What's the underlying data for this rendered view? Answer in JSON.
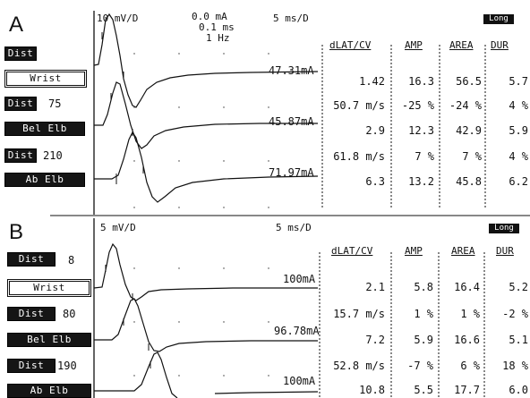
{
  "panel_a": {
    "letter": "A",
    "sensitivity": "10 mV/D",
    "stim_params": [
      "0.0 mA",
      "0.1 ms",
      "1 Hz"
    ],
    "sweep": "5 ms/D",
    "long_chip": "Long",
    "sites": [
      {
        "label": "Dist",
        "value": ""
      },
      {
        "label": "Wrist",
        "value": ""
      },
      {
        "label": "Dist",
        "value": "75"
      },
      {
        "label": "Bel Elb",
        "value": ""
      },
      {
        "label": "Dist",
        "value": "210"
      },
      {
        "label": "Ab Elb",
        "value": ""
      }
    ],
    "trace_amps": [
      "47.31mA",
      "45.87mA",
      "71.97mA"
    ],
    "headers": [
      "dLAT/CV",
      "AMP",
      "AREA",
      "DUR"
    ],
    "rows": [
      [
        "1.42",
        "16.3",
        "56.5",
        "5.7"
      ],
      [
        "50.7 m/s",
        "-25 %",
        "-24 %",
        "4 %"
      ],
      [
        "2.9",
        "12.3",
        "42.9",
        "5.9"
      ],
      [
        "61.8 m/s",
        "7 %",
        "7 %",
        "4 %"
      ],
      [
        "6.3",
        "13.2",
        "45.8",
        "6.2"
      ]
    ]
  },
  "panel_b": {
    "letter": "B",
    "sensitivity": "5 mV/D",
    "sweep": "5 ms/D",
    "long_chip": "Long",
    "sites": [
      {
        "label": "Dist",
        "value": "8"
      },
      {
        "label": "Wrist",
        "value": ""
      },
      {
        "label": "Dist",
        "value": "80"
      },
      {
        "label": "Bel Elb",
        "value": ""
      },
      {
        "label": "Dist",
        "value": "190"
      },
      {
        "label": "Ab Elb",
        "value": ""
      }
    ],
    "trace_amps": [
      "100mA",
      "96.78mA",
      "100mA"
    ],
    "headers": [
      "dLAT/CV",
      "AMP",
      "AREA",
      "DUR"
    ],
    "rows": [
      [
        "2.1",
        "5.8",
        "16.4",
        "5.2"
      ],
      [
        "15.7 m/s",
        "1 %",
        "1 %",
        "-2 %"
      ],
      [
        "7.2",
        "5.9",
        "16.6",
        "5.1"
      ],
      [
        "52.8 m/s",
        "-7 %",
        "6 %",
        "18 %"
      ],
      [
        "10.8",
        "5.5",
        "17.7",
        "6.0"
      ]
    ]
  }
}
